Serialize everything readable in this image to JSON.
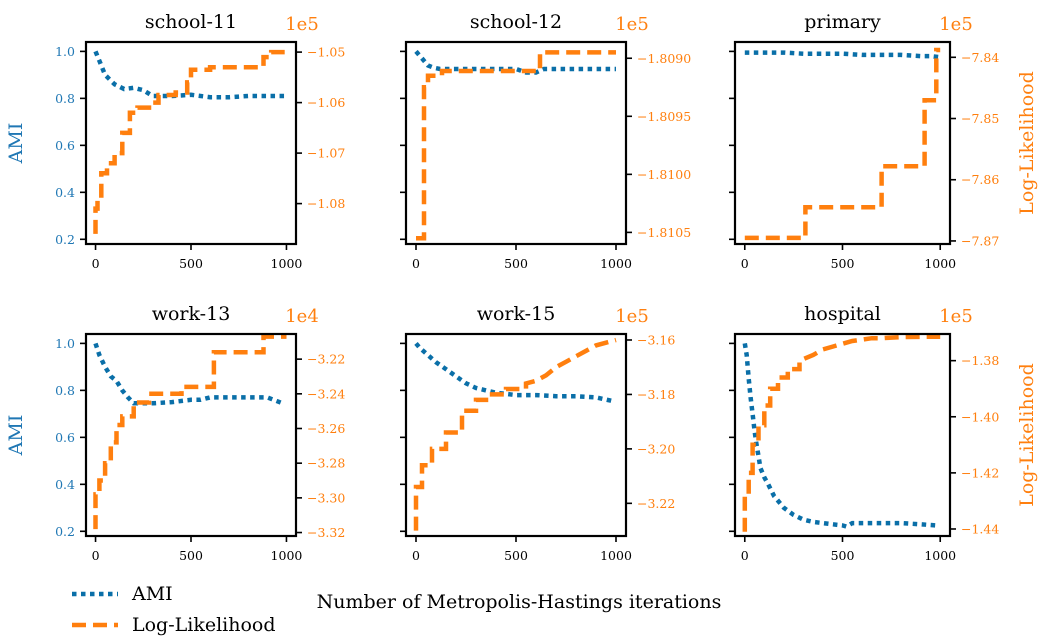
{
  "colors": {
    "ami": "#1f77b4",
    "ami_line": "#0a6fa8",
    "ll": "#ff7f0e"
  },
  "chart_data": [
    {
      "type": "line",
      "title": "school-11",
      "ylabel": "AMI",
      "y2label": "",
      "xlim": [
        -50,
        1050
      ],
      "xticks": [
        "0",
        "500",
        "1000"
      ],
      "ylim": [
        0.18,
        1.04
      ],
      "yticks": [
        [
          "1.0",
          1.0
        ],
        [
          "0.8",
          0.8
        ],
        [
          "0.6",
          0.6
        ],
        [
          "0.4",
          0.4
        ],
        [
          "0.2",
          0.2
        ]
      ],
      "y2lim": [
        -10.88,
        -10.48
      ],
      "y2ticks": [
        [
          "−1.05",
          -10.5
        ],
        [
          "−1.06",
          -10.6
        ],
        [
          "−1.07",
          -10.7
        ],
        [
          "−1.08",
          -10.8
        ]
      ],
      "y2_exponent": "1e5",
      "series": [
        {
          "name": "AMI",
          "axis": "left",
          "x": [
            0,
            20,
            50,
            100,
            150,
            200,
            250,
            300,
            400,
            500,
            600,
            700,
            800,
            900,
            1000
          ],
          "y": [
            1.0,
            0.96,
            0.9,
            0.86,
            0.84,
            0.845,
            0.835,
            0.81,
            0.81,
            0.815,
            0.805,
            0.805,
            0.81,
            0.81,
            0.81
          ]
        },
        {
          "name": "Log-Likelihood",
          "axis": "left2",
          "x": [
            0,
            0,
            10,
            10,
            30,
            30,
            60,
            60,
            100,
            100,
            140,
            140,
            180,
            180,
            220,
            220,
            280,
            280,
            330,
            330,
            420,
            420,
            480,
            480,
            500,
            500,
            600,
            600,
            880,
            880,
            920,
            920,
            1000
          ],
          "y": [
            -10.86,
            -10.81,
            -10.81,
            -10.79,
            -10.79,
            -10.74,
            -10.74,
            -10.72,
            -10.72,
            -10.7,
            -10.7,
            -10.66,
            -10.66,
            -10.62,
            -10.62,
            -10.61,
            -10.61,
            -10.6,
            -10.6,
            -10.585,
            -10.585,
            -10.58,
            -10.58,
            -10.56,
            -10.56,
            -10.535,
            -10.535,
            -10.53,
            -10.53,
            -10.51,
            -10.51,
            -10.5,
            -10.5
          ]
        }
      ]
    },
    {
      "type": "line",
      "title": "school-12",
      "ylabel": "",
      "y2label": "",
      "xlim": [
        -50,
        1050
      ],
      "xticks": [
        "0",
        "500",
        "1000"
      ],
      "ylim": [
        0.18,
        1.04
      ],
      "yticks": [],
      "y2lim": [
        -18.106,
        -18.0886
      ],
      "y2ticks": [
        [
          "−1.8090",
          -18.09
        ],
        [
          "−1.8095",
          -18.095
        ],
        [
          "−1.8100",
          -18.1
        ],
        [
          "−1.8105",
          -18.105
        ]
      ],
      "y2_exponent": "1e5",
      "series": [
        {
          "name": "AMI",
          "axis": "left",
          "x": [
            0,
            30,
            60,
            90,
            120,
            200,
            300,
            400,
            500,
            550,
            600,
            640,
            700,
            800,
            900,
            1000
          ],
          "y": [
            1.0,
            0.97,
            0.94,
            0.93,
            0.925,
            0.925,
            0.925,
            0.925,
            0.925,
            0.91,
            0.91,
            0.925,
            0.925,
            0.925,
            0.925,
            0.925
          ]
        },
        {
          "name": "Log-Likelihood",
          "axis": "left2",
          "x": [
            0,
            40,
            40,
            60,
            60,
            130,
            130,
            620,
            620,
            1000
          ],
          "y": [
            -18.1055,
            -18.1055,
            -18.0925,
            -18.0925,
            -18.0915,
            -18.0915,
            -18.0911,
            -18.0911,
            -18.0895,
            -18.0895
          ]
        }
      ]
    },
    {
      "type": "line",
      "title": "primary",
      "ylabel": "",
      "y2label": "Log-Likelihood",
      "xlim": [
        -50,
        1050
      ],
      "xticks": [
        "0",
        "500",
        "1000"
      ],
      "ylim": [
        0.18,
        1.04
      ],
      "yticks": [],
      "y2lim": [
        -7.8705,
        -7.8375
      ],
      "y2ticks": [
        [
          "−7.84",
          -7.84
        ],
        [
          "−7.85",
          -7.85
        ],
        [
          "−7.86",
          -7.86
        ],
        [
          "−7.87",
          -7.87
        ]
      ],
      "y2_exponent": "1e5",
      "series": [
        {
          "name": "AMI",
          "axis": "left",
          "x": [
            0,
            100,
            200,
            300,
            400,
            500,
            600,
            700,
            800,
            900,
            950,
            1000
          ],
          "y": [
            0.995,
            0.995,
            0.995,
            0.99,
            0.99,
            0.99,
            0.985,
            0.985,
            0.985,
            0.98,
            0.98,
            0.975
          ]
        },
        {
          "name": "Log-Likelihood",
          "axis": "left2",
          "x": [
            0,
            310,
            310,
            700,
            700,
            920,
            920,
            980,
            980,
            1000
          ],
          "y": [
            -7.8695,
            -7.8695,
            -7.8645,
            -7.8645,
            -7.8578,
            -7.8578,
            -7.847,
            -7.847,
            -7.8388,
            -7.8388
          ]
        }
      ]
    },
    {
      "type": "line",
      "title": "work-13",
      "ylabel": "AMI",
      "y2label": "",
      "xlim": [
        -50,
        1050
      ],
      "xticks": [
        "0",
        "500",
        "1000"
      ],
      "ylim": [
        0.18,
        1.04
      ],
      "yticks": [
        [
          "1.0",
          1.0
        ],
        [
          "0.8",
          0.8
        ],
        [
          "0.6",
          0.6
        ],
        [
          "0.4",
          0.4
        ],
        [
          "0.2",
          0.2
        ]
      ],
      "y2lim": [
        -3.322,
        -3.2055
      ],
      "y2ticks": [
        [
          "−3.22",
          -3.22
        ],
        [
          "−3.24",
          -3.24
        ],
        [
          "−3.26",
          -3.26
        ],
        [
          "−3.28",
          -3.28
        ],
        [
          "−3.30",
          -3.3
        ],
        [
          "−3.32",
          -3.32
        ]
      ],
      "y2_exponent": "1e4",
      "series": [
        {
          "name": "AMI",
          "axis": "left",
          "x": [
            0,
            20,
            50,
            80,
            110,
            140,
            170,
            200,
            300,
            400,
            500,
            550,
            600,
            700,
            800,
            900,
            980
          ],
          "y": [
            1.0,
            0.95,
            0.9,
            0.86,
            0.84,
            0.8,
            0.77,
            0.745,
            0.745,
            0.75,
            0.76,
            0.76,
            0.77,
            0.77,
            0.77,
            0.77,
            0.745
          ]
        },
        {
          "name": "Log-Likelihood",
          "axis": "left2",
          "x": [
            0,
            0,
            20,
            20,
            50,
            50,
            80,
            80,
            110,
            110,
            140,
            140,
            200,
            200,
            280,
            280,
            450,
            450,
            620,
            620,
            880,
            880,
            1000
          ],
          "y": [
            -3.318,
            -3.298,
            -3.298,
            -3.29,
            -3.29,
            -3.28,
            -3.28,
            -3.268,
            -3.268,
            -3.258,
            -3.258,
            -3.253,
            -3.253,
            -3.245,
            -3.245,
            -3.24,
            -3.24,
            -3.236,
            -3.236,
            -3.216,
            -3.216,
            -3.207,
            -3.207
          ]
        }
      ]
    },
    {
      "type": "line",
      "title": "work-15",
      "ylabel": "",
      "y2label": "",
      "xlim": [
        -50,
        1050
      ],
      "xticks": [
        "0",
        "500",
        "1000"
      ],
      "ylim": [
        0.18,
        1.04
      ],
      "yticks": [],
      "y2lim": [
        -3.232,
        -3.1578
      ],
      "y2ticks": [
        [
          "−3.16",
          -3.16
        ],
        [
          "−3.18",
          -3.18
        ],
        [
          "−3.20",
          -3.2
        ],
        [
          "−3.22",
          -3.22
        ]
      ],
      "y2_exponent": "1e5",
      "series": [
        {
          "name": "AMI",
          "axis": "left",
          "x": [
            0,
            20,
            60,
            100,
            150,
            200,
            250,
            300,
            350,
            400,
            500,
            600,
            700,
            800,
            900,
            980
          ],
          "y": [
            1.0,
            0.98,
            0.95,
            0.92,
            0.89,
            0.86,
            0.83,
            0.81,
            0.8,
            0.79,
            0.78,
            0.78,
            0.775,
            0.775,
            0.77,
            0.755
          ]
        },
        {
          "name": "Log-Likelihood",
          "axis": "left2",
          "x": [
            0,
            0,
            30,
            30,
            80,
            80,
            150,
            150,
            230,
            230,
            300,
            300,
            350,
            350,
            450,
            450,
            550,
            550,
            600,
            650,
            700,
            750,
            800,
            850,
            900,
            950,
            1000
          ],
          "y": [
            -3.23,
            -3.214,
            -3.214,
            -3.206,
            -3.206,
            -3.2,
            -3.2,
            -3.194,
            -3.194,
            -3.186,
            -3.186,
            -3.182,
            -3.182,
            -3.18,
            -3.18,
            -3.178,
            -3.178,
            -3.176,
            -3.175,
            -3.173,
            -3.17,
            -3.168,
            -3.166,
            -3.164,
            -3.162,
            -3.161,
            -3.16
          ]
        }
      ]
    },
    {
      "type": "line",
      "title": "hospital",
      "ylabel": "",
      "y2label": "Log-Likelihood",
      "xlim": [
        -50,
        1050
      ],
      "xticks": [
        "0",
        "500",
        "1000"
      ],
      "ylim": [
        0.18,
        1.04
      ],
      "yticks": [],
      "y2lim": [
        -1.4425,
        -1.3705
      ],
      "y2ticks": [
        [
          "−1.38",
          -1.38
        ],
        [
          "−1.40",
          -1.4
        ],
        [
          "−1.42",
          -1.42
        ],
        [
          "−1.44",
          -1.44
        ]
      ],
      "y2_exponent": "1e5",
      "series": [
        {
          "name": "AMI",
          "axis": "left",
          "x": [
            0,
            10,
            20,
            30,
            40,
            50,
            60,
            70,
            80,
            100,
            120,
            150,
            200,
            250,
            300,
            350,
            400,
            450,
            500,
            520,
            550,
            600,
            700,
            800,
            900,
            980
          ],
          "y": [
            1.0,
            0.95,
            0.85,
            0.77,
            0.7,
            0.63,
            0.57,
            0.52,
            0.47,
            0.43,
            0.4,
            0.35,
            0.3,
            0.27,
            0.25,
            0.24,
            0.235,
            0.23,
            0.225,
            0.22,
            0.235,
            0.235,
            0.235,
            0.235,
            0.23,
            0.225
          ]
        },
        {
          "name": "Log-Likelihood",
          "axis": "left2",
          "x": [
            0,
            0,
            20,
            20,
            40,
            40,
            70,
            70,
            100,
            100,
            130,
            130,
            170,
            170,
            220,
            220,
            280,
            280,
            350,
            400,
            450,
            500,
            550,
            600,
            650,
            700,
            750,
            800,
            900,
            1000
          ],
          "y": [
            -1.441,
            -1.428,
            -1.428,
            -1.42,
            -1.42,
            -1.41,
            -1.41,
            -1.403,
            -1.403,
            -1.396,
            -1.396,
            -1.39,
            -1.39,
            -1.386,
            -1.386,
            -1.383,
            -1.383,
            -1.38,
            -1.378,
            -1.376,
            -1.375,
            -1.374,
            -1.373,
            -1.3725,
            -1.372,
            -1.372,
            -1.3718,
            -1.3716,
            -1.3715,
            -1.3715
          ]
        }
      ]
    }
  ],
  "xlabel": "Number of Metropolis-Hastings iterations",
  "legend": {
    "ami": "AMI",
    "ll": "Log-Likelihood"
  }
}
